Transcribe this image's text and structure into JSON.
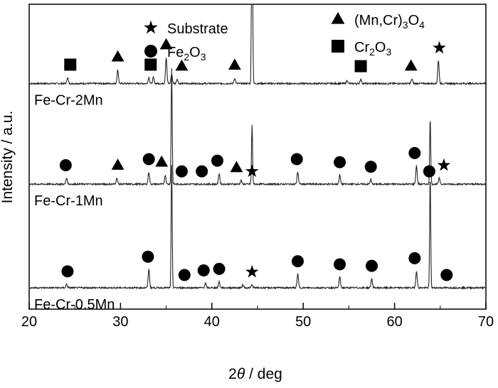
{
  "chart_data": {
    "type": "line",
    "xlabel": {
      "prefix": "2",
      "italic": "θ",
      "suffix": " / deg"
    },
    "ylabel": "Intensity / a.u.",
    "xlim": [
      20,
      70
    ],
    "xticks": [
      20,
      30,
      40,
      50,
      60,
      70
    ],
    "legend": {
      "placement": "top",
      "entries": [
        {
          "marker": "star",
          "label": "Substrate",
          "parts": [
            [
              "Substrate",
              ""
            ]
          ]
        },
        {
          "marker": "triangle",
          "label": "(Mn,Cr)3O4",
          "parts": [
            [
              "(Mn,Cr)",
              ""
            ],
            [
              "3",
              "sub"
            ],
            [
              "O",
              ""
            ],
            [
              "4",
              "sub"
            ]
          ]
        },
        {
          "marker": "circle",
          "label": "Fe2O3",
          "parts": [
            [
              "Fe",
              ""
            ],
            [
              "2",
              "sub"
            ],
            [
              "O",
              ""
            ],
            [
              "3",
              "sub"
            ]
          ]
        },
        {
          "marker": "square",
          "label": "Cr2O3",
          "parts": [
            [
              "Cr",
              ""
            ],
            [
              "2",
              "sub"
            ],
            [
              "O",
              ""
            ],
            [
              "3",
              "sub"
            ]
          ]
        }
      ]
    },
    "series": [
      {
        "name": "Fe-Cr-2Mn",
        "baseline": 0.74,
        "peaks": [
          [
            24.2,
            0.02
          ],
          [
            29.7,
            0.045
          ],
          [
            33.1,
            0.02
          ],
          [
            33.6,
            0.02
          ],
          [
            35.0,
            0.085
          ],
          [
            35.6,
            0.03
          ],
          [
            36.2,
            0.015
          ],
          [
            42.5,
            0.018
          ],
          [
            44.4,
            1.0
          ],
          [
            54.8,
            0.01
          ],
          [
            56.3,
            0.015
          ],
          [
            61.9,
            0.015
          ],
          [
            64.8,
            0.075
          ]
        ],
        "markers": [
          {
            "x": 24.5,
            "type": "square"
          },
          {
            "x": 29.7,
            "type": "triangle"
          },
          {
            "x": 33.3,
            "type": "square"
          },
          {
            "x": 35.0,
            "type": "triangle"
          },
          {
            "x": 36.7,
            "type": "triangle"
          },
          {
            "x": 42.5,
            "type": "triangle"
          },
          {
            "x": 56.3,
            "type": "square"
          },
          {
            "x": 61.8,
            "type": "triangle"
          },
          {
            "x": 64.9,
            "type": "star"
          }
        ]
      },
      {
        "name": "Fe-Cr-1Mn",
        "baseline": 0.41,
        "peaks": [
          [
            24.1,
            0.02
          ],
          [
            29.6,
            0.02
          ],
          [
            33.1,
            0.04
          ],
          [
            34.9,
            0.03
          ],
          [
            35.6,
            0.38
          ],
          [
            40.8,
            0.035
          ],
          [
            43.2,
            0.012
          ],
          [
            44.4,
            0.195
          ],
          [
            49.4,
            0.04
          ],
          [
            54.0,
            0.03
          ],
          [
            57.4,
            0.015
          ],
          [
            62.4,
            0.06
          ],
          [
            63.9,
            0.215
          ],
          [
            64.9,
            0.02
          ]
        ],
        "markers": [
          {
            "x": 24.0,
            "type": "circle"
          },
          {
            "x": 29.7,
            "type": "triangle"
          },
          {
            "x": 33.1,
            "type": "circle"
          },
          {
            "x": 34.5,
            "type": "triangle"
          },
          {
            "x": 36.7,
            "type": "circle"
          },
          {
            "x": 38.9,
            "type": "circle"
          },
          {
            "x": 40.6,
            "type": "circle"
          },
          {
            "x": 42.7,
            "type": "triangle"
          },
          {
            "x": 44.4,
            "type": "star"
          },
          {
            "x": 49.3,
            "type": "circle"
          },
          {
            "x": 54.0,
            "type": "circle"
          },
          {
            "x": 57.4,
            "type": "circle"
          },
          {
            "x": 62.2,
            "type": "circle"
          },
          {
            "x": 63.8,
            "type": "circle"
          },
          {
            "x": 65.4,
            "type": "star"
          }
        ]
      },
      {
        "name": "Fe-Cr-0.5Mn",
        "baseline": 0.07,
        "peaks": [
          [
            24.1,
            0.012
          ],
          [
            33.1,
            0.06
          ],
          [
            35.6,
            0.4
          ],
          [
            39.3,
            0.015
          ],
          [
            40.8,
            0.02
          ],
          [
            43.4,
            0.01
          ],
          [
            44.4,
            0.01
          ],
          [
            49.4,
            0.045
          ],
          [
            54.0,
            0.035
          ],
          [
            57.5,
            0.03
          ],
          [
            62.4,
            0.055
          ],
          [
            63.9,
            0.37
          ]
        ],
        "markers": [
          {
            "x": 24.2,
            "type": "circle"
          },
          {
            "x": 33.0,
            "type": "circle"
          },
          {
            "x": 37.0,
            "type": "circle"
          },
          {
            "x": 39.1,
            "type": "circle"
          },
          {
            "x": 40.8,
            "type": "circle"
          },
          {
            "x": 44.4,
            "type": "star"
          },
          {
            "x": 49.4,
            "type": "circle"
          },
          {
            "x": 54.0,
            "type": "circle"
          },
          {
            "x": 57.5,
            "type": "circle"
          },
          {
            "x": 62.2,
            "type": "circle"
          },
          {
            "x": 65.7,
            "type": "circle"
          }
        ]
      }
    ],
    "grid": false
  }
}
